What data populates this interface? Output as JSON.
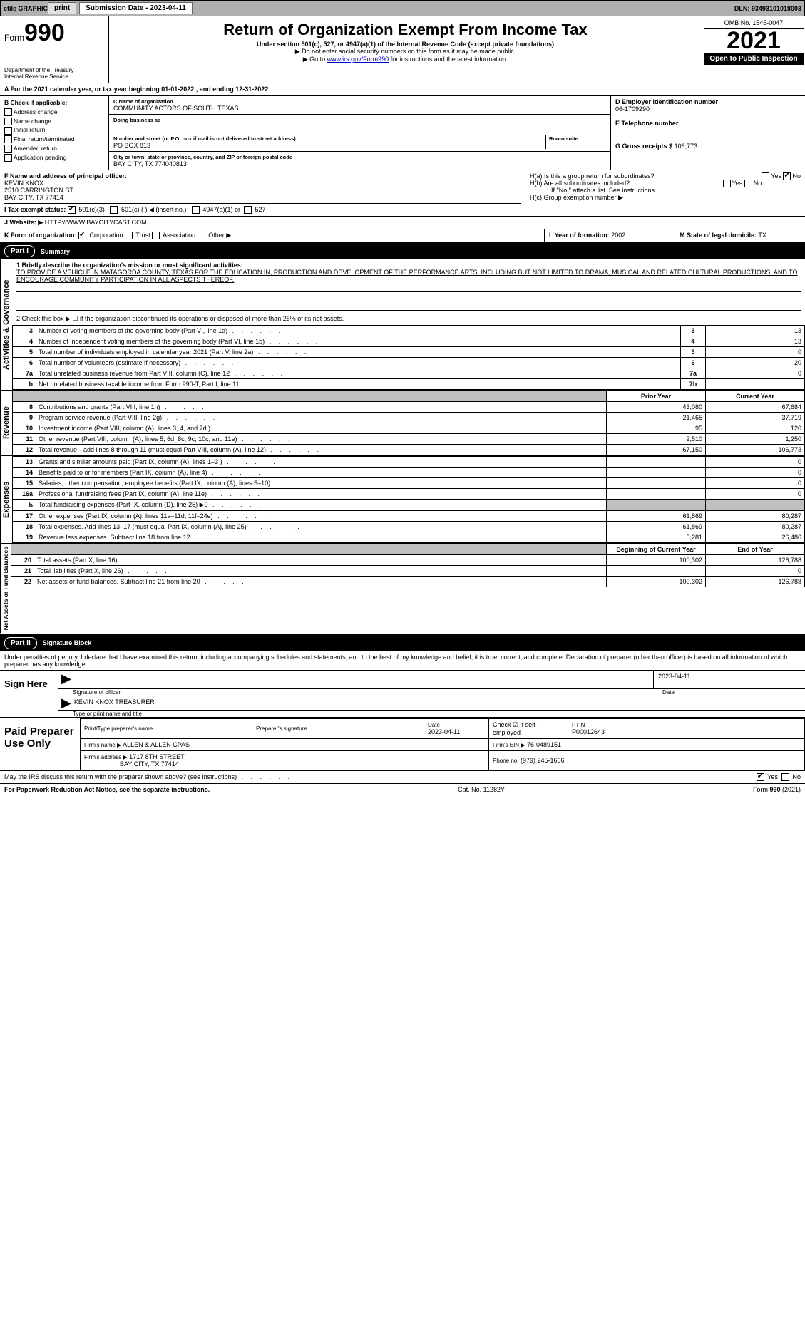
{
  "topbar": {
    "efile": "efile GRAPHIC",
    "print": "print",
    "submission_label": "Submission Date - 2023-04-11",
    "dln": "DLN: 93493101018003"
  },
  "header": {
    "form_prefix": "Form",
    "form_number": "990",
    "title": "Return of Organization Exempt From Income Tax",
    "subtitle": "Under section 501(c), 527, or 4947(a)(1) of the Internal Revenue Code (except private foundations)",
    "note1": "▶ Do not enter social security numbers on this form as it may be made public.",
    "note2_pre": "▶ Go to ",
    "note2_link": "www.irs.gov/Form990",
    "note2_post": " for instructions and the latest information.",
    "dept": "Department of the Treasury",
    "irs": "Internal Revenue Service",
    "omb": "OMB No. 1545-0047",
    "year": "2021",
    "open": "Open to Public Inspection"
  },
  "line_a": "A For the 2021 calendar year, or tax year beginning 01-01-2022   , and ending 12-31-2022",
  "box_b": {
    "title": "B Check if applicable:",
    "items": [
      "Address change",
      "Name change",
      "Initial return",
      "Final return/terminated",
      "Amended return",
      "Application pending"
    ]
  },
  "box_c": {
    "name_label": "C Name of organization",
    "name": "COMMUNITY ACTORS OF SOUTH TEXAS",
    "dba_label": "Doing business as",
    "addr_label": "Number and street (or P.O. box if mail is not delivered to street address)",
    "room_label": "Room/suite",
    "addr": "PO BOX 813",
    "city_label": "City or town, state or province, country, and ZIP or foreign postal code",
    "city": "BAY CITY, TX  774040813"
  },
  "box_d": {
    "label": "D Employer identification number",
    "value": "06-1709290"
  },
  "box_e": {
    "label": "E Telephone number",
    "value": ""
  },
  "box_g": {
    "label": "G Gross receipts $",
    "value": "106,773"
  },
  "box_f": {
    "label": "F Name and address of principal officer:",
    "name": "KEVIN KNOX",
    "addr1": "2510 CARRINGTON ST",
    "addr2": "BAY CITY, TX  77414"
  },
  "box_h": {
    "a_label": "H(a)  Is this a group return for subordinates?",
    "a_yes": "Yes",
    "a_no": "No",
    "b_label": "H(b)  Are all subordinates included?",
    "b_yes": "Yes",
    "b_no": "No",
    "b_note": "If \"No,\" attach a list. See instructions.",
    "c_label": "H(c)  Group exemption number ▶"
  },
  "box_i": {
    "label": "I  Tax-exempt status:",
    "o1": "501(c)(3)",
    "o2": "501(c) (    ) ◀ (insert no.)",
    "o3": "4947(a)(1) or",
    "o4": "527"
  },
  "box_j": {
    "label": "J  Website: ▶",
    "value": "HTTP://WWW.BAYCITYCAST.COM"
  },
  "box_k": {
    "label": "K Form of organization:",
    "o1": "Corporation",
    "o2": "Trust",
    "o3": "Association",
    "o4": "Other ▶"
  },
  "box_l": {
    "label": "L Year of formation:",
    "value": "2002"
  },
  "box_m": {
    "label": "M State of legal domicile:",
    "value": "TX"
  },
  "part1": {
    "header_num": "Part I",
    "header_title": "Summary",
    "q1_label": "1  Briefly describe the organization's mission or most significant activities:",
    "q1_text": "TO PROVIDE A VEHICLE IN MATAGORDA COUNTY, TEXAS FOR THE EDUCATION IN, PRODUCTION AND DEVELOPMENT OF THE PERFORMANCE ARTS, INCLUDING BUT NOT LIMITED TO DRAMA, MUSICAL AND RELATED CULTURAL PRODUCTIONS, AND TO ENCOURAGE COMMUNITY PARTICIPATION IN ALL ASPECTS THEREOF.",
    "q2": "2  Check this box ▶ ☐ if the organization discontinued its operations or disposed of more than 25% of its net assets.",
    "rows_ag": [
      {
        "n": "3",
        "d": "Number of voting members of the governing body (Part VI, line 1a)",
        "b": "3",
        "v": "13"
      },
      {
        "n": "4",
        "d": "Number of independent voting members of the governing body (Part VI, line 1b)",
        "b": "4",
        "v": "13"
      },
      {
        "n": "5",
        "d": "Total number of individuals employed in calendar year 2021 (Part V, line 2a)",
        "b": "5",
        "v": "0"
      },
      {
        "n": "6",
        "d": "Total number of volunteers (estimate if necessary)",
        "b": "6",
        "v": "20"
      },
      {
        "n": "7a",
        "d": "Total unrelated business revenue from Part VIII, column (C), line 12",
        "b": "7a",
        "v": "0"
      },
      {
        "n": "b",
        "d": "Net unrelated business taxable income from Form 990-T, Part I, line 11",
        "b": "7b",
        "v": ""
      }
    ],
    "col_prior": "Prior Year",
    "col_current": "Current Year",
    "rows_rev": [
      {
        "n": "8",
        "d": "Contributions and grants (Part VIII, line 1h)",
        "p": "43,080",
        "c": "67,684"
      },
      {
        "n": "9",
        "d": "Program service revenue (Part VIII, line 2g)",
        "p": "21,465",
        "c": "37,719"
      },
      {
        "n": "10",
        "d": "Investment income (Part VIII, column (A), lines 3, 4, and 7d )",
        "p": "95",
        "c": "120"
      },
      {
        "n": "11",
        "d": "Other revenue (Part VIII, column (A), lines 5, 6d, 8c, 9c, 10c, and 11e)",
        "p": "2,510",
        "c": "1,250"
      },
      {
        "n": "12",
        "d": "Total revenue—add lines 8 through 11 (must equal Part VIII, column (A), line 12)",
        "p": "67,150",
        "c": "106,773"
      }
    ],
    "rows_exp": [
      {
        "n": "13",
        "d": "Grants and similar amounts paid (Part IX, column (A), lines 1–3 )",
        "p": "",
        "c": "0"
      },
      {
        "n": "14",
        "d": "Benefits paid to or for members (Part IX, column (A), line 4)",
        "p": "",
        "c": "0"
      },
      {
        "n": "15",
        "d": "Salaries, other compensation, employee benefits (Part IX, column (A), lines 5–10)",
        "p": "",
        "c": "0"
      },
      {
        "n": "16a",
        "d": "Professional fundraising fees (Part IX, column (A), line 11e)",
        "p": "",
        "c": "0"
      },
      {
        "n": "b",
        "d": "Total fundraising expenses (Part IX, column (D), line 25) ▶0",
        "p": "grey",
        "c": "grey"
      },
      {
        "n": "17",
        "d": "Other expenses (Part IX, column (A), lines 11a–11d, 11f–24e)",
        "p": "61,869",
        "c": "80,287"
      },
      {
        "n": "18",
        "d": "Total expenses. Add lines 13–17 (must equal Part IX, column (A), line 25)",
        "p": "61,869",
        "c": "80,287"
      },
      {
        "n": "19",
        "d": "Revenue less expenses. Subtract line 18 from line 12",
        "p": "5,281",
        "c": "26,486"
      }
    ],
    "col_begin": "Beginning of Current Year",
    "col_end": "End of Year",
    "rows_net": [
      {
        "n": "20",
        "d": "Total assets (Part X, line 16)",
        "p": "100,302",
        "c": "126,788"
      },
      {
        "n": "21",
        "d": "Total liabilities (Part X, line 26)",
        "p": "",
        "c": "0"
      },
      {
        "n": "22",
        "d": "Net assets or fund balances. Subtract line 21 from line 20",
        "p": "100,302",
        "c": "126,788"
      }
    ],
    "vlabels": {
      "ag": "Activities & Governance",
      "rev": "Revenue",
      "exp": "Expenses",
      "net": "Net Assets or Fund Balances"
    }
  },
  "part2": {
    "header_num": "Part II",
    "header_title": "Signature Block",
    "declaration": "Under penalties of perjury, I declare that I have examined this return, including accompanying schedules and statements, and to the best of my knowledge and belief, it is true, correct, and complete. Declaration of preparer (other than officer) is based on all information of which preparer has any knowledge."
  },
  "sign": {
    "label": "Sign Here",
    "sig_officer": "Signature of officer",
    "date_label": "Date",
    "date": "2023-04-11",
    "name": "KEVIN KNOX  TREASURER",
    "name_label": "Type or print name and title"
  },
  "paid": {
    "label": "Paid Preparer Use Only",
    "h_name": "Print/Type preparer's name",
    "h_sig": "Preparer's signature",
    "h_date": "Date",
    "date": "2023-04-11",
    "check_label": "Check ☑ if self-employed",
    "ptin_label": "PTIN",
    "ptin": "P00012643",
    "firm_name_label": "Firm's name      ▶",
    "firm_name": "ALLEN & ALLEN CPAS",
    "firm_ein_label": "Firm's EIN ▶",
    "firm_ein": "76-0489151",
    "firm_addr_label": "Firm's address ▶",
    "firm_addr1": "1717 8TH STREET",
    "firm_addr2": "BAY CITY, TX  77414",
    "phone_label": "Phone no.",
    "phone": "(979) 245-1666"
  },
  "footer": {
    "discuss": "May the IRS discuss this return with the preparer shown above? (see instructions)",
    "yes": "Yes",
    "no": "No",
    "paperwork": "For Paperwork Reduction Act Notice, see the separate instructions.",
    "cat": "Cat. No. 11282Y",
    "form": "Form 990 (2021)"
  }
}
